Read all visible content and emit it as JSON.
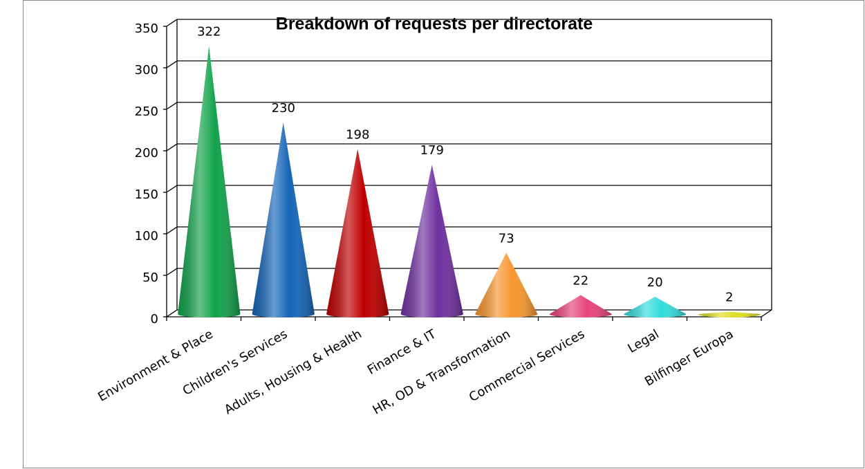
{
  "chart_data": {
    "type": "cone",
    "title": "Breakdown of requests per directorate",
    "categories": [
      "Environment & Place",
      "Children's Services",
      "Adults, Housing & Health",
      "Finance & IT",
      "HR, OD & Transformation",
      "Commercial Services",
      "Legal",
      "Bilfinger Europa"
    ],
    "values": [
      322,
      230,
      198,
      179,
      73,
      22,
      20,
      2
    ],
    "colors": [
      "#12a24a",
      "#1565b8",
      "#c00000",
      "#7030a0",
      "#f7962e",
      "#e8437a",
      "#33dcdc",
      "#dede22"
    ],
    "ylim": [
      0,
      350
    ],
    "yticks": [
      0,
      50,
      100,
      150,
      200,
      250,
      300,
      350
    ],
    "grid": true
  }
}
